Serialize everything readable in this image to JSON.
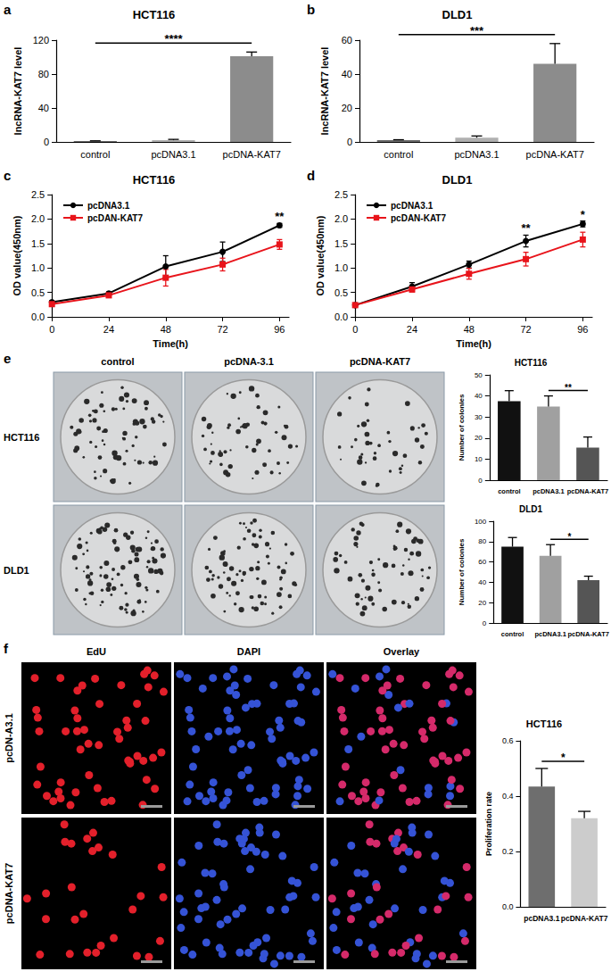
{
  "chart_data": [
    {
      "panel": "a",
      "type": "bar",
      "title": "HCT116",
      "y_label": "lncRNA-KAT7 level",
      "categories": [
        "control",
        "pcDNA3.1",
        "pcDNA-KAT7"
      ],
      "values": [
        1,
        2,
        101
      ],
      "errors": [
        0.3,
        1,
        5
      ],
      "colors": [
        "#6b6b6b",
        "#b0b0b0",
        "#8c8c8c"
      ],
      "ylim": [
        0,
        120
      ],
      "yticks": [
        0,
        40,
        80,
        120
      ],
      "grid": false,
      "annotations": [
        {
          "text": "****",
          "from": "control",
          "to": "pcDNA-KAT7"
        }
      ]
    },
    {
      "panel": "b",
      "type": "bar",
      "title": "DLD1",
      "y_label": "lncRNA-KAT7 level",
      "categories": [
        "control",
        "pcDNA3.1",
        "pcDNA-KAT7"
      ],
      "values": [
        1,
        2.5,
        46
      ],
      "errors": [
        0.3,
        1,
        12
      ],
      "colors": [
        "#6b6b6b",
        "#b0b0b0",
        "#8c8c8c"
      ],
      "ylim": [
        0,
        60
      ],
      "yticks": [
        0,
        20,
        40,
        60
      ],
      "grid": false,
      "annotations": [
        {
          "text": "***",
          "from": "control",
          "to": "pcDNA-KAT7"
        }
      ]
    },
    {
      "panel": "c",
      "type": "line",
      "title": "HCT116",
      "x_label": "Time(h)",
      "y_label": "OD value(450nm)",
      "x": [
        0,
        24,
        48,
        72,
        96
      ],
      "series": [
        {
          "name": "pcDNA3.1",
          "color": "#000000",
          "marker": "circle",
          "values": [
            0.3,
            0.48,
            1.03,
            1.33,
            1.87
          ],
          "errors": [
            0.03,
            0.03,
            0.22,
            0.2,
            0.04
          ]
        },
        {
          "name": "pcDAN-KAT7",
          "color": "#e8141b",
          "marker": "square",
          "values": [
            0.26,
            0.44,
            0.8,
            1.07,
            1.48
          ],
          "errors": [
            0.02,
            0.03,
            0.17,
            0.13,
            0.1
          ]
        }
      ],
      "xlim": [
        0,
        100
      ],
      "xticks": [
        0,
        24,
        48,
        72,
        96
      ],
      "ylim": [
        0,
        2.5
      ],
      "yticks": [
        {
          "value": 0,
          "label": "0.0"
        },
        {
          "value": 0.5,
          "label": "0.5"
        },
        {
          "value": 1,
          "label": "1.0"
        },
        {
          "value": 1.5,
          "label": "1.5"
        },
        {
          "value": 2,
          "label": "2.0"
        },
        {
          "value": 2.5,
          "label": "2.5"
        }
      ],
      "legend": "upper left",
      "grid": false,
      "annotations": [
        {
          "text": "**",
          "x": 96
        }
      ]
    },
    {
      "panel": "d",
      "type": "line",
      "title": "DLD1",
      "x_label": "Time(h)",
      "y_label": "OD value(450nm)",
      "x": [
        0,
        24,
        48,
        72,
        96
      ],
      "series": [
        {
          "name": "pcDNA3.1",
          "color": "#000000",
          "marker": "circle",
          "values": [
            0.24,
            0.62,
            1.07,
            1.55,
            1.9
          ],
          "errors": [
            0.02,
            0.08,
            0.07,
            0.12,
            0.06
          ]
        },
        {
          "name": "pcDAN-KAT7",
          "color": "#e8141b",
          "marker": "square",
          "values": [
            0.24,
            0.56,
            0.88,
            1.18,
            1.58
          ],
          "errors": [
            0.02,
            0.05,
            0.11,
            0.14,
            0.15
          ]
        }
      ],
      "xlim": [
        0,
        100
      ],
      "xticks": [
        0,
        24,
        48,
        72,
        96
      ],
      "ylim": [
        0,
        2.5
      ],
      "yticks": [
        {
          "value": 0,
          "label": "0.0"
        },
        {
          "value": 0.5,
          "label": "0.5"
        },
        {
          "value": 1,
          "label": "1.0"
        },
        {
          "value": 1.5,
          "label": "1.5"
        },
        {
          "value": 2,
          "label": "2.0"
        },
        {
          "value": 2.5,
          "label": "2.5"
        }
      ],
      "legend": "upper left",
      "grid": false,
      "annotations": [
        {
          "text": "**",
          "x": 72
        },
        {
          "text": "*",
          "x": 96
        }
      ]
    },
    {
      "type": "bar",
      "title": "HCT116",
      "y_label": "Number of colonies",
      "categories": [
        "control",
        "pcDNA3.1",
        "pcDNA-KAT7"
      ],
      "values": [
        37.5,
        35,
        15.5
      ],
      "errors": [
        5,
        5,
        5
      ],
      "colors": [
        "#111111",
        "#a0a0a0",
        "#555555"
      ],
      "ylim": [
        0,
        50
      ],
      "yticks": [
        0,
        10,
        20,
        30,
        40,
        50
      ],
      "grid": false,
      "annotations": [
        {
          "text": "**",
          "from": "pcDNA3.1",
          "to": "pcDNA-KAT7"
        }
      ]
    },
    {
      "type": "bar",
      "title": "DLD1",
      "y_label": "Number of colonies",
      "categories": [
        "control",
        "pcDNA3.1",
        "pcDNA-KAT7"
      ],
      "values": [
        75,
        66,
        42
      ],
      "errors": [
        9,
        11,
        4
      ],
      "colors": [
        "#111111",
        "#a0a0a0",
        "#555555"
      ],
      "ylim": [
        0,
        100
      ],
      "yticks": [
        0,
        20,
        40,
        60,
        80,
        100
      ],
      "grid": false,
      "annotations": [
        {
          "text": "*",
          "from": "pcDNA3.1",
          "to": "pcDNA-KAT7"
        }
      ]
    },
    {
      "type": "bar",
      "title": "HCT116",
      "y_label": "Proliferation rate",
      "categories": [
        "pcDNA3.1",
        "pcDNA-KAT7"
      ],
      "values": [
        0.435,
        0.32
      ],
      "errors": [
        0.065,
        0.025
      ],
      "colors": [
        "#6e6e6e",
        "#cccccc"
      ],
      "ylim": [
        0,
        0.6
      ],
      "yticks": [
        {
          "value": 0,
          "label": "0.0"
        },
        {
          "value": 0.2,
          "label": "0.2"
        },
        {
          "value": 0.4,
          "label": "0.4"
        },
        {
          "value": 0.6,
          "label": "0.6"
        }
      ],
      "grid": false,
      "annotations": [
        {
          "text": "*",
          "from": "pcDNA3.1",
          "to": "pcDNA-KAT7"
        }
      ]
    }
  ],
  "images": [
    {
      "panel": "e",
      "columns": [
        "control",
        "pcDNA-3.1",
        "pcDNA-KAT7"
      ],
      "rows": [
        "HCT116",
        "DLD1"
      ]
    },
    {
      "panel": "f",
      "columns": [
        "EdU",
        "DAPI",
        "Overlay"
      ],
      "rows": [
        "pcDN-A3.1",
        "pcDNA-KAT7"
      ]
    }
  ]
}
